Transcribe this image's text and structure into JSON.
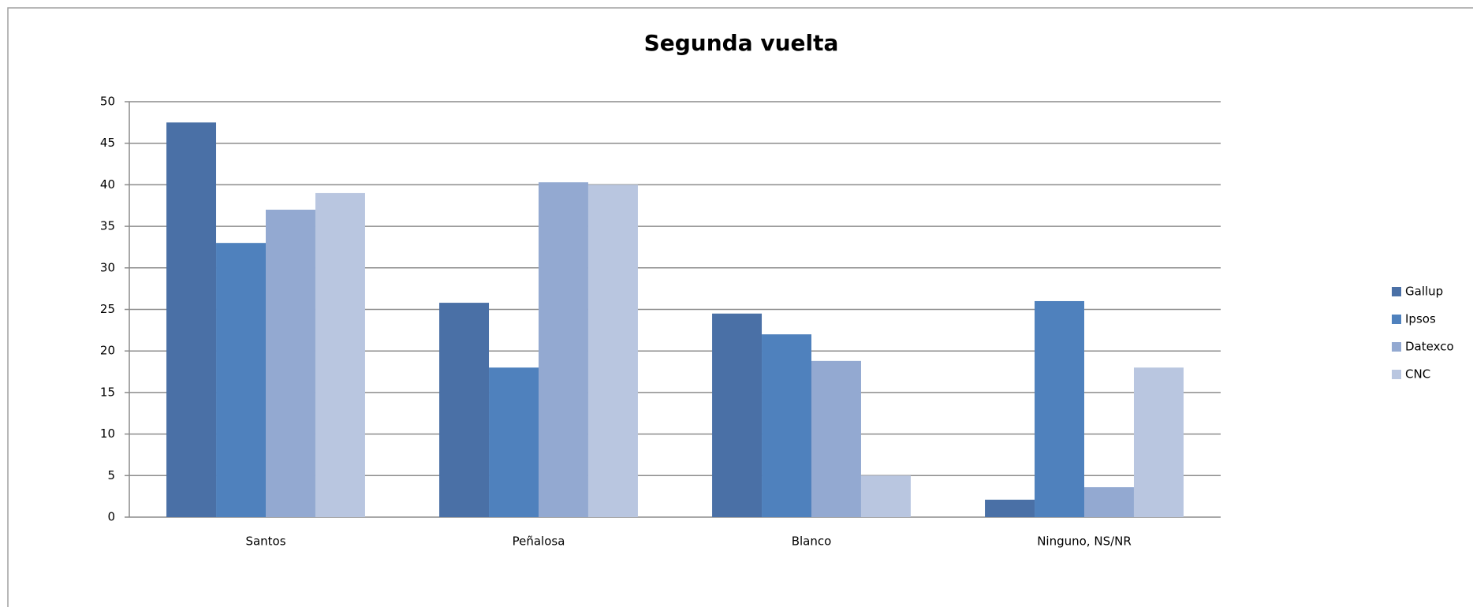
{
  "chart_data": {
    "type": "bar",
    "title": "Segunda vuelta",
    "categories": [
      "Santos",
      "Peñalosa",
      "Blanco",
      "Ninguno, NS/NR"
    ],
    "series": [
      {
        "name": "Gallup",
        "color": "#4a70a6",
        "values": [
          47.5,
          25.8,
          24.5,
          2.1
        ]
      },
      {
        "name": "Ipsos",
        "color": "#4f81bd",
        "values": [
          33,
          18,
          22,
          26
        ]
      },
      {
        "name": "Datexco",
        "color": "#93a9d1",
        "values": [
          37,
          40.3,
          18.8,
          3.6
        ]
      },
      {
        "name": "CNC",
        "color": "#b9c6e0",
        "values": [
          39,
          40,
          5,
          18
        ]
      }
    ],
    "ylim": [
      0,
      50
    ],
    "yticks": [
      0,
      5,
      10,
      15,
      20,
      25,
      30,
      35,
      40,
      45,
      50
    ],
    "grid": true,
    "legend": "right"
  }
}
